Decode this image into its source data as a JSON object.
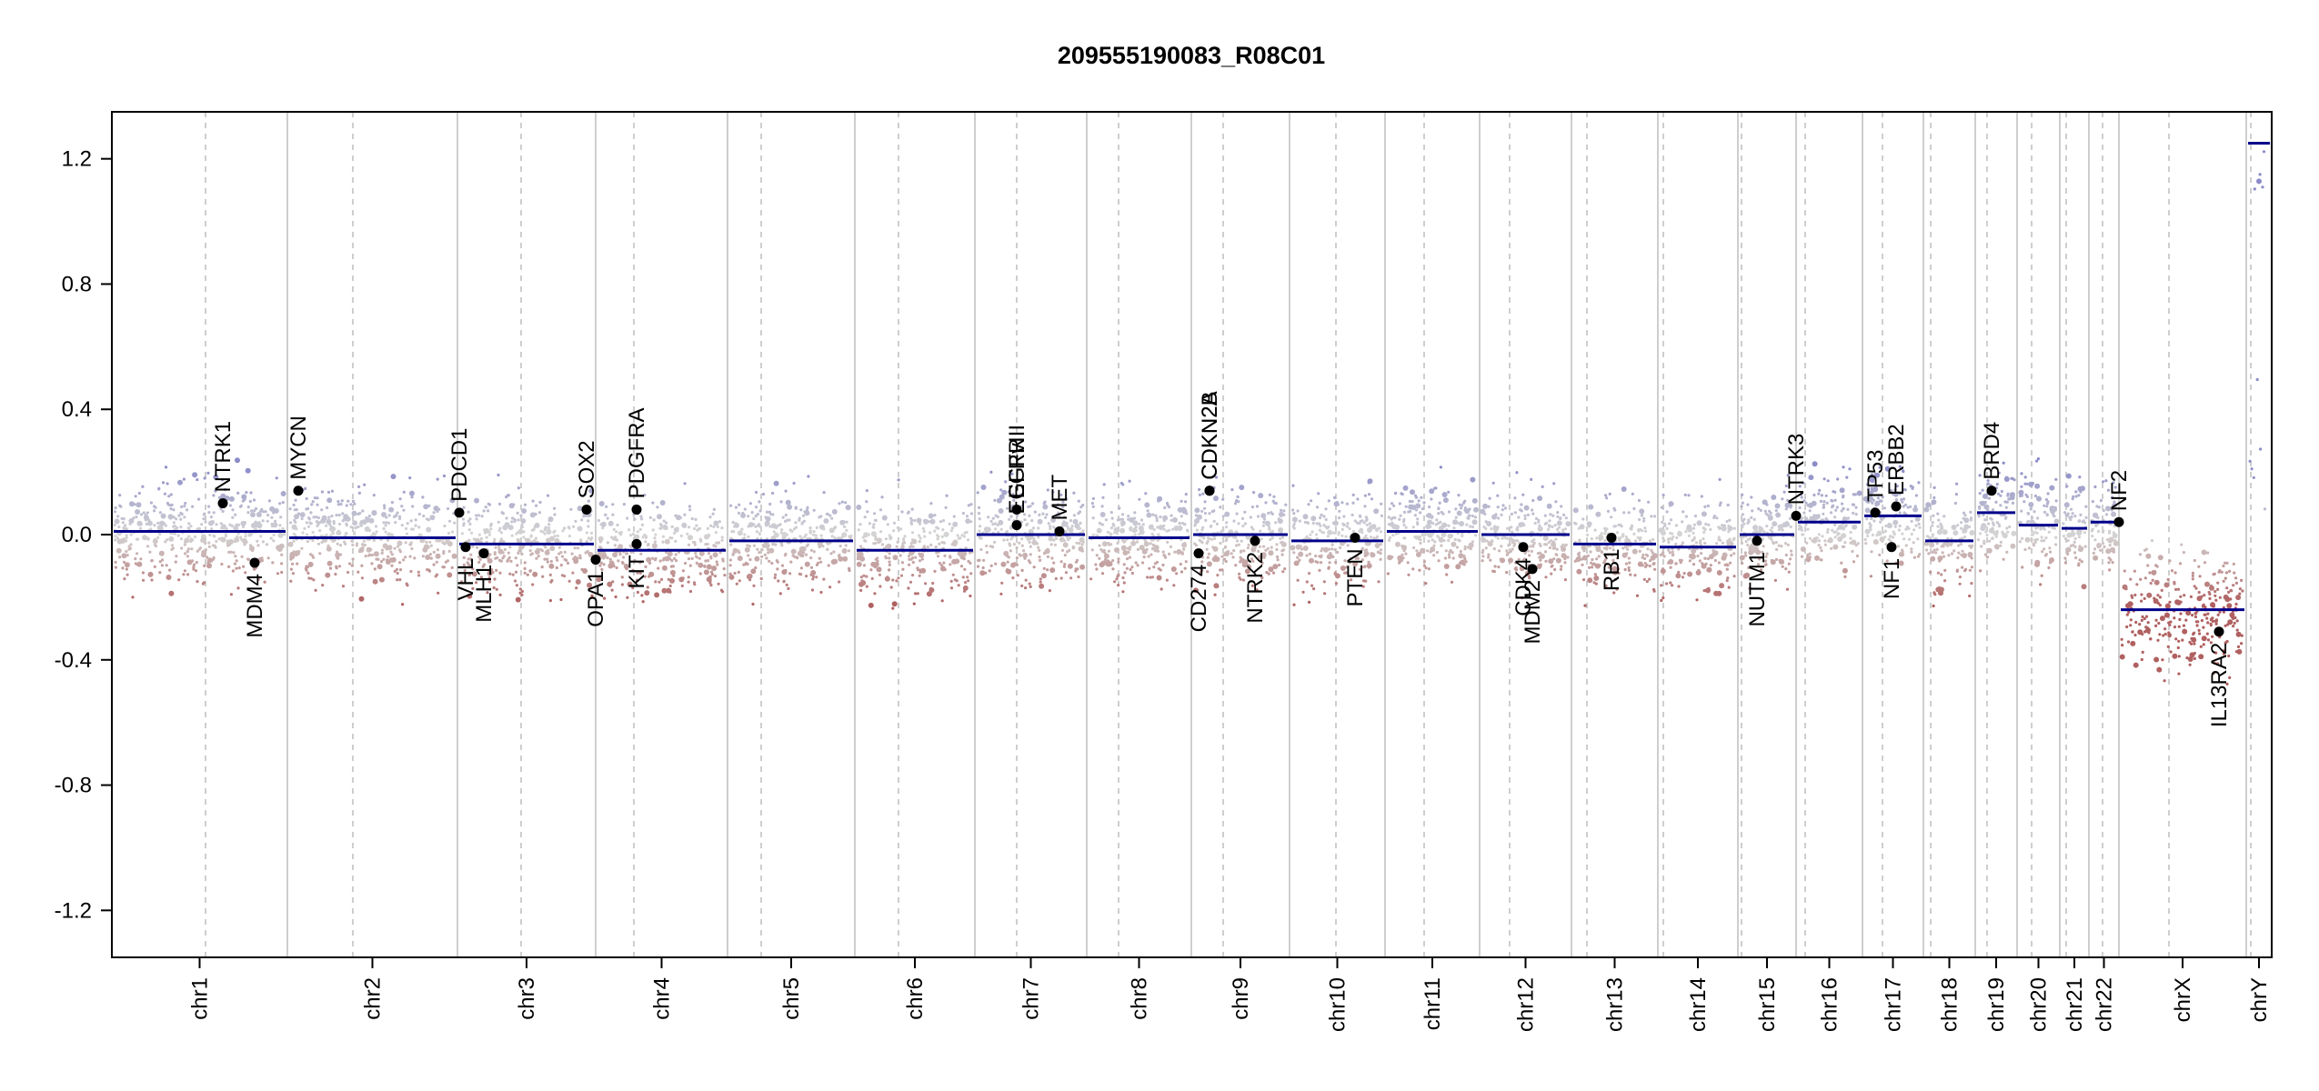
{
  "chart_data": {
    "type": "scatter",
    "title": "209555190083_R08C01",
    "xlabel": "",
    "ylabel": "",
    "ylim": [
      -1.35,
      1.35
    ],
    "y_ticks": [
      "1.2",
      "0.8",
      "0.4",
      "0.0",
      "-0.4",
      "-0.8",
      "-1.2"
    ],
    "y_tick_values": [
      1.2,
      0.8,
      0.4,
      0.0,
      -0.4,
      -0.8,
      -1.2
    ],
    "colors": {
      "segment": "#00008b",
      "gain": "#8b8bc8",
      "loss": "#b06060",
      "neutral": "#cccccc",
      "divider": "#bdbdbd",
      "marker": "#000000"
    },
    "chromosomes": [
      {
        "name": "chr1",
        "value": 0.01
      },
      {
        "name": "chr2",
        "value": -0.01
      },
      {
        "name": "chr3",
        "value": -0.03
      },
      {
        "name": "chr4",
        "value": -0.05
      },
      {
        "name": "chr5",
        "value": -0.02
      },
      {
        "name": "chr6",
        "value": -0.05
      },
      {
        "name": "chr7",
        "value": 0.0
      },
      {
        "name": "chr8",
        "value": -0.01
      },
      {
        "name": "chr9",
        "value": 0.0
      },
      {
        "name": "chr10",
        "value": -0.02
      },
      {
        "name": "chr11",
        "value": 0.01
      },
      {
        "name": "chr12",
        "value": 0.0
      },
      {
        "name": "chr13",
        "value": -0.03
      },
      {
        "name": "chr14",
        "value": -0.04
      },
      {
        "name": "chr15",
        "value": 0.0
      },
      {
        "name": "chr16",
        "value": 0.04
      },
      {
        "name": "chr17",
        "value": 0.06
      },
      {
        "name": "chr18",
        "value": -0.02
      },
      {
        "name": "chr19",
        "value": 0.07
      },
      {
        "name": "chr20",
        "value": 0.03
      },
      {
        "name": "chr21",
        "value": 0.02
      },
      {
        "name": "chr22",
        "value": 0.04
      },
      {
        "name": "chrX",
        "value": -0.24
      },
      {
        "name": "chrY",
        "value": 1.25
      }
    ],
    "genes": [
      {
        "name": "NTRK1",
        "chr": "chr1",
        "value": 0.1
      },
      {
        "name": "MDM4",
        "chr": "chr1",
        "value": -0.09
      },
      {
        "name": "MYCN",
        "chr": "chr2",
        "value": 0.14
      },
      {
        "name": "PDCD1",
        "chr": "chr2",
        "value": 0.07
      },
      {
        "name": "VHL",
        "chr": "chr3",
        "value": -0.04
      },
      {
        "name": "MLH1",
        "chr": "chr3",
        "value": -0.06
      },
      {
        "name": "SOX2",
        "chr": "chr3",
        "value": 0.08
      },
      {
        "name": "OPA1",
        "chr": "chr3",
        "value": -0.08
      },
      {
        "name": "PDGFRA",
        "chr": "chr4",
        "value": 0.08
      },
      {
        "name": "KIT",
        "chr": "chr4",
        "value": -0.03
      },
      {
        "name": "EGFR",
        "chr": "chr7",
        "value": 0.08
      },
      {
        "name": "EGFRvIII",
        "chr": "chr7",
        "value": 0.03
      },
      {
        "name": "MET",
        "chr": "chr7",
        "value": 0.01
      },
      {
        "name": "CD274",
        "chr": "chr9",
        "value": -0.06
      },
      {
        "name": "CDKN2A",
        "chr": "chr9",
        "value": 0.14
      },
      {
        "name": "CDKN2B",
        "chr": "chr9",
        "value": 0.14
      },
      {
        "name": "NTRK2",
        "chr": "chr9",
        "value": -0.02
      },
      {
        "name": "PTEN",
        "chr": "chr10",
        "value": -0.01
      },
      {
        "name": "CDK4",
        "chr": "chr12",
        "value": -0.04
      },
      {
        "name": "MDM2",
        "chr": "chr12",
        "value": -0.11
      },
      {
        "name": "RB1",
        "chr": "chr13",
        "value": -0.01
      },
      {
        "name": "NUTM1",
        "chr": "chr15",
        "value": -0.02
      },
      {
        "name": "NTRK3",
        "chr": "chr15",
        "value": 0.06
      },
      {
        "name": "TP53",
        "chr": "chr17",
        "value": 0.07
      },
      {
        "name": "ERBB2",
        "chr": "chr17",
        "value": 0.09
      },
      {
        "name": "NF1",
        "chr": "chr17",
        "value": -0.04
      },
      {
        "name": "BRD4",
        "chr": "chr19",
        "value": 0.14
      },
      {
        "name": "NF2",
        "chr": "chr22",
        "value": 0.04
      },
      {
        "name": "IL13RA2",
        "chr": "chrX",
        "value": -0.31
      }
    ]
  }
}
